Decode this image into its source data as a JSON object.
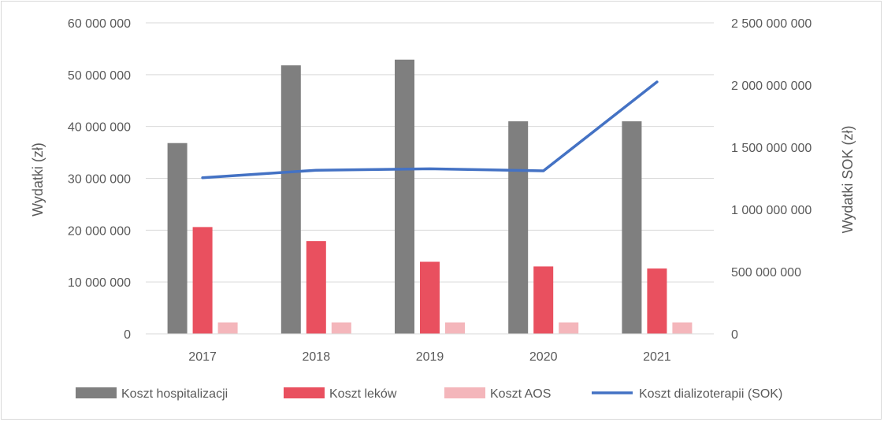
{
  "chart_data": {
    "type": "bar",
    "categories": [
      "2017",
      "2018",
      "2019",
      "2020",
      "2021"
    ],
    "series": [
      {
        "name": "Koszt hospitalizacji",
        "axis": "left",
        "kind": "bar",
        "color": "#7f7f7f",
        "values": [
          36800000,
          51800000,
          52900000,
          41000000,
          41000000
        ]
      },
      {
        "name": "Koszt leków",
        "axis": "left",
        "kind": "bar",
        "color": "#e9505f",
        "values": [
          20600000,
          17900000,
          13900000,
          13000000,
          12600000
        ]
      },
      {
        "name": "Koszt AOS",
        "axis": "left",
        "kind": "bar",
        "color": "#f4b6bb",
        "values": [
          2200000,
          2200000,
          2200000,
          2200000,
          2200000
        ]
      },
      {
        "name": "Koszt dializoterapii (SOK)",
        "axis": "right",
        "kind": "line",
        "color": "#4472c4",
        "values": [
          1255000000,
          1315000000,
          1327000000,
          1310000000,
          2025000000
        ]
      }
    ],
    "left_axis": {
      "label": "Wydatki (zł)",
      "ylim": [
        0,
        60000000
      ],
      "ticks": [
        0,
        10000000,
        20000000,
        30000000,
        40000000,
        50000000,
        60000000
      ],
      "tick_labels": [
        "0",
        "10 000 000",
        "20 000 000",
        "30 000 000",
        "40 000 000",
        "50 000 000",
        "60 000 000"
      ]
    },
    "right_axis": {
      "label": "Wydatki SOK (zł)",
      "ylim": [
        0,
        2500000000
      ],
      "ticks": [
        0,
        500000000,
        1000000000,
        1500000000,
        2000000000,
        2500000000
      ],
      "tick_labels": [
        "0",
        "500 000 000",
        "1 000 000 000",
        "1 500 000 000",
        "2 000 000 000",
        "2 500 000 000"
      ]
    },
    "grid": true,
    "legend_position": "bottom"
  }
}
